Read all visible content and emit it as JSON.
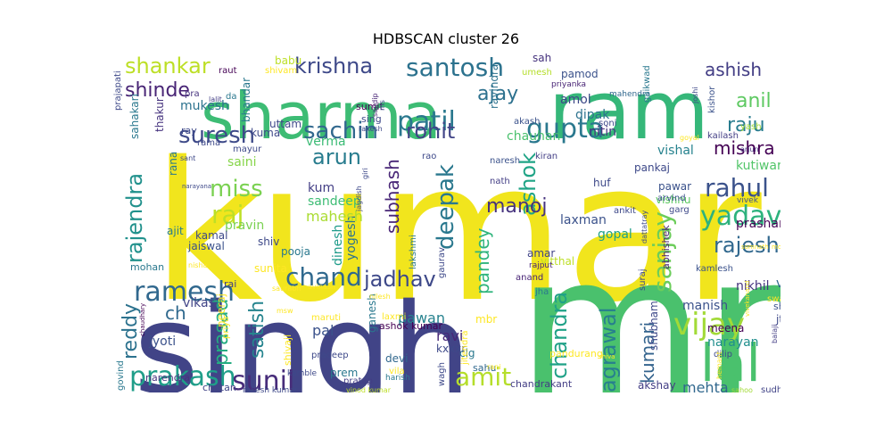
{
  "chart_data": {
    "type": "wordcloud",
    "title": "HDBSCAN cluster 26",
    "words": [
      {
        "text": "kumar",
        "color": "#f1e51d"
      },
      {
        "text": "mr",
        "color": "#4ac16d"
      },
      {
        "text": "singh",
        "color": "#414487"
      },
      {
        "text": "ram",
        "color": "#35b779"
      },
      {
        "text": "sharma",
        "color": "#3dbc74"
      },
      {
        "text": "lal",
        "color": "#4ac16d"
      },
      {
        "text": "vijay",
        "color": "#a2da37"
      },
      {
        "text": "gupta",
        "color": "#2a788e"
      },
      {
        "text": "patil",
        "color": "#2a788e"
      },
      {
        "text": "santosh",
        "color": "#2c728e"
      },
      {
        "text": "krishna",
        "color": "#3e4989"
      },
      {
        "text": "shankar",
        "color": "#bddf26"
      },
      {
        "text": "suresh",
        "color": "#3e4a89"
      },
      {
        "text": "sachin",
        "color": "#31688e"
      },
      {
        "text": "rohit",
        "color": "#414487"
      },
      {
        "text": "ajay",
        "color": "#2d718e"
      },
      {
        "text": "shinde",
        "color": "#482475"
      },
      {
        "text": "ashish",
        "color": "#433e85"
      },
      {
        "text": "anil",
        "color": "#5ec962"
      },
      {
        "text": "raju",
        "color": "#287c8e"
      },
      {
        "text": "mishra",
        "color": "#440154"
      },
      {
        "text": "rahul",
        "color": "#3b528b"
      },
      {
        "text": "yadav",
        "color": "#2db27d"
      },
      {
        "text": "rajesh",
        "color": "#31688e"
      },
      {
        "text": "sanjay",
        "color": "#6ccd5a"
      },
      {
        "text": "ashok",
        "color": "#20a486"
      },
      {
        "text": "deepak",
        "color": "#2a788e"
      },
      {
        "text": "manoj",
        "color": "#46337e"
      },
      {
        "text": "arun",
        "color": "#287c8e"
      },
      {
        "text": "miss",
        "color": "#7ad151"
      },
      {
        "text": "raj",
        "color": "#bddf26"
      },
      {
        "text": "rajendra",
        "color": "#21918c"
      },
      {
        "text": "subhash",
        "color": "#482677"
      },
      {
        "text": "ramesh",
        "color": "#31688e"
      },
      {
        "text": "chand",
        "color": "#30698e"
      },
      {
        "text": "jadhav",
        "color": "#3e4989"
      },
      {
        "text": "prakash",
        "color": "#1f9e89"
      },
      {
        "text": "sunil",
        "color": "#472c7a"
      },
      {
        "text": "amit",
        "color": "#b5de2b"
      },
      {
        "text": "chandra",
        "color": "#1fa187"
      },
      {
        "text": "agrawal",
        "color": "#277f8e"
      },
      {
        "text": "kumari",
        "color": "#33638d"
      },
      {
        "text": "satish",
        "color": "#25848e"
      },
      {
        "text": "prasad",
        "color": "#25ac82"
      },
      {
        "text": "reddy",
        "color": "#2c728e"
      },
      {
        "text": "pandey",
        "color": "#2fb47c"
      },
      {
        "text": "kutiwari",
        "color": "#52c569"
      },
      {
        "text": "prashant",
        "color": "#440154"
      },
      {
        "text": "nikhil",
        "color": "#46337e"
      },
      {
        "text": "manish",
        "color": "#3b528b"
      },
      {
        "text": "mehta",
        "color": "#31688e"
      },
      {
        "text": "narayan",
        "color": "#218f8d"
      },
      {
        "text": "meena",
        "color": "#440154"
      },
      {
        "text": "pawan",
        "color": "#26828e"
      },
      {
        "text": "ravi",
        "color": "#482878"
      },
      {
        "text": "dinesh",
        "color": "#1e9b8a"
      },
      {
        "text": "yogesh",
        "color": "#2d718e"
      },
      {
        "text": "kum",
        "color": "#433e85"
      },
      {
        "text": "verma",
        "color": "#3bbb75"
      },
      {
        "text": "sandeep",
        "color": "#3dbc74"
      },
      {
        "text": "mahesh",
        "color": "#aadc32"
      },
      {
        "text": "saini",
        "color": "#86d549"
      },
      {
        "text": "pravin",
        "color": "#7ad151"
      },
      {
        "text": "gopal",
        "color": "#1fa187"
      },
      {
        "text": "laxman",
        "color": "#3b528b"
      },
      {
        "text": "vishal",
        "color": "#26828e"
      },
      {
        "text": "chauhan",
        "color": "#4ac16d"
      },
      {
        "text": "nitin",
        "color": "#46337e"
      },
      {
        "text": "amol",
        "color": "#3e4989"
      },
      {
        "text": "dipak",
        "color": "#2c728e"
      },
      {
        "text": "mukesh",
        "color": "#2c728e"
      },
      {
        "text": "bhandar",
        "color": "#2a788e"
      },
      {
        "text": "vinod",
        "color": "#31688e"
      },
      {
        "text": "vishnu",
        "color": "#5ec962"
      },
      {
        "text": "ravindra",
        "color": "#2c728e"
      },
      {
        "text": "pamod",
        "color": "#3b528b"
      },
      {
        "text": "sah",
        "color": "#46337e"
      },
      {
        "text": "shubham",
        "color": "#3e4989"
      },
      {
        "text": "ashok kumar",
        "color": "#440154"
      },
      {
        "text": "jyoti",
        "color": "#3b528b"
      },
      {
        "text": "neeraj",
        "color": "#fde725"
      },
      {
        "text": "ch",
        "color": "#30698e"
      },
      {
        "text": "vikas",
        "color": "#414487"
      },
      {
        "text": "jaiswal",
        "color": "#3b528b"
      },
      {
        "text": "mohan",
        "color": "#2a788e"
      },
      {
        "text": "pal",
        "color": "#3b528b"
      },
      {
        "text": "prem",
        "color": "#2a788e"
      },
      {
        "text": "devi",
        "color": "#31688e"
      },
      {
        "text": "clg",
        "color": "#2a788e"
      },
      {
        "text": "sunita",
        "color": "#fde725"
      },
      {
        "text": "shiv",
        "color": "#3e4989"
      },
      {
        "text": "kamal",
        "color": "#3e4989"
      },
      {
        "text": "ajit",
        "color": "#287c8e"
      },
      {
        "text": "thakur",
        "color": "#46337e"
      },
      {
        "text": "uttam",
        "color": "#3e4989"
      },
      {
        "text": "rana",
        "color": "#2a788e"
      },
      {
        "text": "sahakari",
        "color": "#2a788e"
      },
      {
        "text": "pra",
        "color": "#46337e"
      },
      {
        "text": "ray",
        "color": "#3e4989"
      },
      {
        "text": "sumit",
        "color": "#440154"
      },
      {
        "text": "sing",
        "color": "#3e4989"
      },
      {
        "text": "babu",
        "color": "#bddf26"
      },
      {
        "text": "shivam",
        "color": "#fde725"
      },
      {
        "text": "raut",
        "color": "#440154"
      },
      {
        "text": "umesh",
        "color": "#b5de2b"
      },
      {
        "text": "priyanka",
        "color": "#482475"
      },
      {
        "text": "mahendra",
        "color": "#31688e"
      },
      {
        "text": "gaikwad",
        "color": "#2a788e"
      },
      {
        "text": "kishor",
        "color": "#3b528b"
      },
      {
        "text": "akash",
        "color": "#3b528b"
      },
      {
        "text": "soni",
        "color": "#3e4989"
      },
      {
        "text": "yash",
        "color": "#a2da37"
      },
      {
        "text": "kailash",
        "color": "#433e85"
      },
      {
        "text": "goyal",
        "color": "#fde725"
      },
      {
        "text": "arjun",
        "color": "#46337e"
      },
      {
        "text": "huf",
        "color": "#3e4989"
      },
      {
        "text": "pankaj",
        "color": "#3e4989"
      },
      {
        "text": "pawar",
        "color": "#3b528b"
      },
      {
        "text": "arvind",
        "color": "#3b528b"
      },
      {
        "text": "garg",
        "color": "#3e4989"
      },
      {
        "text": "ankit",
        "color": "#3e4989"
      },
      {
        "text": "abhishek",
        "color": "#482475"
      },
      {
        "text": "vivek",
        "color": "#3b528b"
      },
      {
        "text": "naresh",
        "color": "#3b528b"
      },
      {
        "text": "kiran",
        "color": "#433e85"
      },
      {
        "text": "nath",
        "color": "#433e85"
      },
      {
        "text": "rao",
        "color": "#3e4989"
      },
      {
        "text": "amar",
        "color": "#414487"
      },
      {
        "text": "vitthal",
        "color": "#bddf26"
      },
      {
        "text": "kamlesh",
        "color": "#3b528b"
      },
      {
        "text": "dilip",
        "color": "#3e4989"
      },
      {
        "text": "swami",
        "color": "#fde725"
      },
      {
        "text": "shri",
        "color": "#3b528b"
      },
      {
        "text": "jt",
        "color": "#3e4989"
      },
      {
        "text": "anand",
        "color": "#482475"
      },
      {
        "text": "jha",
        "color": "#2a788e"
      },
      {
        "text": "suraj",
        "color": "#3e4989"
      },
      {
        "text": "rajput",
        "color": "#482475"
      },
      {
        "text": "akshay",
        "color": "#433e85"
      },
      {
        "text": "chandrakant",
        "color": "#433e85"
      },
      {
        "text": "pandurang",
        "color": "#fde725"
      },
      {
        "text": "mbr",
        "color": "#fde725"
      },
      {
        "text": "wagh",
        "color": "#3e4989"
      },
      {
        "text": "sahu",
        "color": "#31688e"
      },
      {
        "text": "rani",
        "color": "#fde725"
      },
      {
        "text": "kxxxr",
        "color": "#3e4989"
      },
      {
        "text": "jitendra",
        "color": "#fde725"
      },
      {
        "text": "gaurav",
        "color": "#3e4989"
      },
      {
        "text": "lakshmi",
        "color": "#2a788e"
      },
      {
        "text": "ganesh",
        "color": "#2a788e"
      },
      {
        "text": "laxmi",
        "color": "#fde725"
      },
      {
        "text": "maruti",
        "color": "#fde725"
      },
      {
        "text": "vila",
        "color": "#fde725"
      },
      {
        "text": "harish",
        "color": "#2a788e"
      },
      {
        "text": "pratap",
        "color": "#433e85"
      },
      {
        "text": "pradeep",
        "color": "#3e4989"
      },
      {
        "text": "kamble",
        "color": "#3e4989"
      },
      {
        "text": "shivaji",
        "color": "#fde725"
      },
      {
        "text": "priya",
        "color": "#fde725"
      },
      {
        "text": "avinash",
        "color": "#fde725"
      },
      {
        "text": "nilesh",
        "color": "#fde725"
      },
      {
        "text": "saurabh",
        "color": "#fde725"
      },
      {
        "text": "msw",
        "color": "#fde725"
      },
      {
        "text": "rai",
        "color": "#433e85"
      },
      {
        "text": "nisha",
        "color": "#fde725"
      },
      {
        "text": "pooja",
        "color": "#2a788e"
      },
      {
        "text": "chetan",
        "color": "#414487"
      },
      {
        "text": "rakesh kumar",
        "color": "#3e4989"
      },
      {
        "text": "vinod kumar",
        "color": "#bddf26"
      },
      {
        "text": "sahoo",
        "color": "#a2da37"
      },
      {
        "text": "sudhir",
        "color": "#414487"
      },
      {
        "text": "narendra",
        "color": "#46337e"
      },
      {
        "text": "govind",
        "color": "#2a788e"
      },
      {
        "text": "chaudhary",
        "color": "#440154"
      },
      {
        "text": "balaji",
        "color": "#433e85"
      },
      {
        "text": "hemant",
        "color": "#fde725"
      },
      {
        "text": "shiva",
        "color": "#fde725"
      },
      {
        "text": "somnath",
        "color": "#fde725"
      },
      {
        "text": "mohit",
        "color": "#fde725"
      },
      {
        "text": "dattatray",
        "color": "#3e4989"
      },
      {
        "text": "vivekanand",
        "color": "#fde725"
      },
      {
        "text": "joshi",
        "color": "#3e4989"
      },
      {
        "text": "rama",
        "color": "#3e4989"
      },
      {
        "text": "sant",
        "color": "#3e4989"
      },
      {
        "text": "narayana",
        "color": "#3e4989"
      },
      {
        "text": "prajapati",
        "color": "#3e4989"
      },
      {
        "text": "lalit",
        "color": "#433e85"
      },
      {
        "text": "da",
        "color": "#2a788e"
      },
      {
        "text": "rakesh",
        "color": "#3e4989"
      },
      {
        "text": "sandip",
        "color": "#482475"
      },
      {
        "text": "ms",
        "color": "#3e4989"
      },
      {
        "text": "giri",
        "color": "#3e4989"
      },
      {
        "text": "jagdish",
        "color": "#3e4989"
      },
      {
        "text": "mayur",
        "color": "#3e4989"
      },
      {
        "text": "kuma",
        "color": "#3e4989"
      }
    ]
  }
}
